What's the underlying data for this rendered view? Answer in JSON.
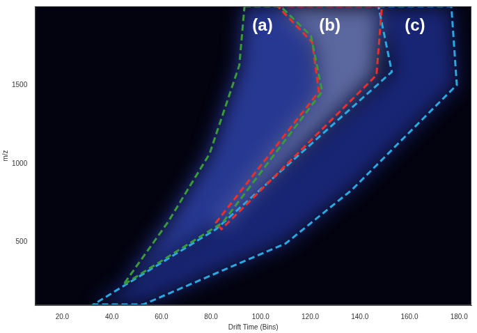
{
  "chart_data": {
    "type": "line",
    "x_label": "Drift Time (Bins)",
    "y_label": "m/z",
    "xlim": [
      9,
      185
    ],
    "ylim": [
      100,
      2000
    ],
    "xticks": [
      {
        "value": 20,
        "label": "20.0"
      },
      {
        "value": 40,
        "label": "40.0"
      },
      {
        "value": 60,
        "label": "60.0"
      },
      {
        "value": 80,
        "label": "80.0"
      },
      {
        "value": 100,
        "label": "100.0"
      },
      {
        "value": 120,
        "label": "120.0"
      },
      {
        "value": 140,
        "label": "140.0"
      },
      {
        "value": 160,
        "label": "160.0"
      },
      {
        "value": 180,
        "label": "180.0"
      }
    ],
    "yticks": [
      500,
      1000,
      1500
    ],
    "line_style": "dashed",
    "series": [
      {
        "name": "(a)",
        "color": "#3a9a3a",
        "x": [
          93.5,
          108.0,
          120.3,
          124.8,
          84.7,
          44.6,
          62.5,
          79.4,
          91.4
        ],
        "values": [
          2000,
          2000,
          1812,
          1458,
          625,
          229,
          625,
          1062,
          1625
        ]
      },
      {
        "name": "(b)",
        "color": "#e8302a",
        "x": [
          106.9,
          148.9,
          146.7,
          84.2,
          82.0,
          123.5,
          120.8
        ],
        "values": [
          2000,
          2000,
          1562,
          583,
          625,
          1458,
          1771
        ]
      },
      {
        "name": "(c)",
        "color": "#29a9e0",
        "x": [
          147.5,
          176.9,
          179.1,
          136.8,
          110.1,
          52.6,
          32.6,
          82.0,
          152.9
        ],
        "values": [
          2000,
          2000,
          1500,
          833,
          492,
          104,
          104,
          583,
          1583
        ]
      }
    ]
  }
}
